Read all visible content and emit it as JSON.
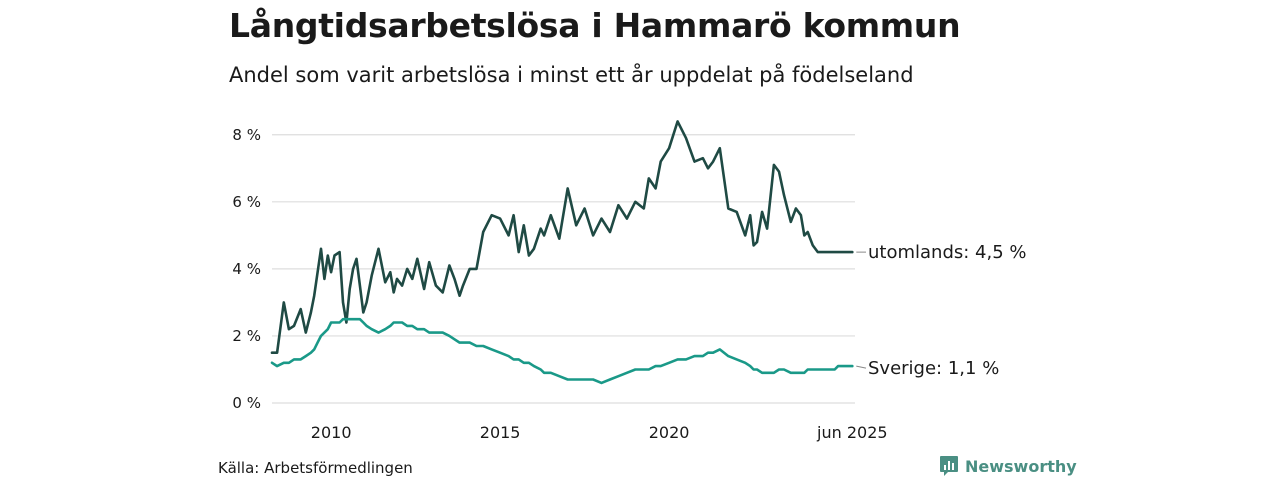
{
  "header": {
    "title": "Långtidsarbetslösa i Hammarö kommun",
    "subtitle": "Andel som varit arbetslösa i minst ett år uppdelat på födelseland"
  },
  "footer": {
    "source": "Källa: Arbetsförmedlingen",
    "brand": "Newsworthy"
  },
  "colors": {
    "utomlands": "#1f4a44",
    "sverige": "#1a9988",
    "grid": "#dddddd",
    "brand": "#4a8f83"
  },
  "chart_data": {
    "type": "line",
    "ylim": [
      0,
      8.5
    ],
    "xlim": [
      2008.25,
      2025.5
    ],
    "y_ticks": [
      {
        "value": 0,
        "label": "0 %"
      },
      {
        "value": 2,
        "label": "2 %"
      },
      {
        "value": 4,
        "label": "4 %"
      },
      {
        "value": 6,
        "label": "6 %"
      },
      {
        "value": 8,
        "label": "8 %"
      }
    ],
    "x_ticks": [
      {
        "value": 2010,
        "label": "2010"
      },
      {
        "value": 2015,
        "label": "2015"
      },
      {
        "value": 2020,
        "label": "2020"
      },
      {
        "value": 2025.42,
        "label": "jun 2025"
      }
    ],
    "series": [
      {
        "name": "utomlands",
        "end_label": "utomlands: 4,5 %",
        "x": [
          2008.25,
          2008.4,
          2008.6,
          2008.75,
          2008.9,
          2009.1,
          2009.25,
          2009.4,
          2009.5,
          2009.6,
          2009.7,
          2009.8,
          2009.9,
          2010.0,
          2010.1,
          2010.25,
          2010.35,
          2010.45,
          2010.55,
          2010.65,
          2010.75,
          2010.85,
          2010.95,
          2011.05,
          2011.2,
          2011.4,
          2011.6,
          2011.75,
          2011.85,
          2011.95,
          2012.1,
          2012.25,
          2012.4,
          2012.55,
          2012.75,
          2012.9,
          2013.1,
          2013.3,
          2013.5,
          2013.65,
          2013.8,
          2013.9,
          2014.1,
          2014.3,
          2014.5,
          2014.75,
          2015.0,
          2015.25,
          2015.4,
          2015.55,
          2015.7,
          2015.85,
          2016.0,
          2016.2,
          2016.3,
          2016.5,
          2016.75,
          2017.0,
          2017.25,
          2017.5,
          2017.75,
          2018.0,
          2018.25,
          2018.5,
          2018.75,
          2019.0,
          2019.25,
          2019.4,
          2019.6,
          2019.75,
          2020.0,
          2020.25,
          2020.5,
          2020.75,
          2021.0,
          2021.15,
          2021.3,
          2021.5,
          2021.75,
          2022.0,
          2022.25,
          2022.4,
          2022.5,
          2022.6,
          2022.75,
          2022.9,
          2023.1,
          2023.25,
          2023.4,
          2023.6,
          2023.75,
          2023.9,
          2024.0,
          2024.1,
          2024.25,
          2024.4,
          2024.5,
          2024.6,
          2024.75,
          2024.9,
          2025.0,
          2025.15,
          2025.25,
          2025.42
        ],
        "values": [
          1.5,
          1.5,
          3.0,
          2.2,
          2.3,
          2.8,
          2.1,
          2.7,
          3.2,
          3.9,
          4.6,
          3.7,
          4.4,
          3.9,
          4.4,
          4.5,
          3.0,
          2.4,
          3.4,
          4.0,
          4.3,
          3.5,
          2.7,
          3.0,
          3.8,
          4.6,
          3.6,
          3.9,
          3.3,
          3.7,
          3.5,
          4.0,
          3.7,
          4.3,
          3.4,
          4.2,
          3.5,
          3.3,
          4.1,
          3.7,
          3.2,
          3.5,
          4.0,
          4.0,
          5.1,
          5.6,
          5.5,
          5.0,
          5.6,
          4.5,
          5.3,
          4.4,
          4.6,
          5.2,
          5.0,
          5.6,
          4.9,
          6.4,
          5.3,
          5.8,
          5.0,
          5.5,
          5.1,
          5.9,
          5.5,
          6.0,
          5.8,
          6.7,
          6.4,
          7.2,
          7.6,
          8.4,
          7.9,
          7.2,
          7.3,
          7.0,
          7.2,
          7.6,
          5.8,
          5.7,
          5.0,
          5.6,
          4.7,
          4.8,
          5.7,
          5.2,
          7.1,
          6.9,
          6.2,
          5.4,
          5.8,
          5.6,
          5.0,
          5.1,
          4.7,
          4.5,
          4.5,
          4.5,
          4.5,
          4.5,
          4.5,
          4.5,
          4.5,
          4.5
        ]
      },
      {
        "name": "Sverige",
        "end_label": "Sverige: 1,1 %",
        "x": [
          2008.25,
          2008.4,
          2008.6,
          2008.75,
          2008.9,
          2009.1,
          2009.25,
          2009.4,
          2009.5,
          2009.6,
          2009.7,
          2009.8,
          2009.9,
          2010.0,
          2010.1,
          2010.25,
          2010.35,
          2010.45,
          2010.55,
          2010.65,
          2010.75,
          2010.85,
          2010.95,
          2011.05,
          2011.2,
          2011.4,
          2011.6,
          2011.75,
          2011.85,
          2011.95,
          2012.1,
          2012.25,
          2012.4,
          2012.55,
          2012.75,
          2012.9,
          2013.1,
          2013.3,
          2013.5,
          2013.65,
          2013.8,
          2013.9,
          2014.1,
          2014.3,
          2014.5,
          2014.75,
          2015.0,
          2015.25,
          2015.4,
          2015.55,
          2015.7,
          2015.85,
          2016.0,
          2016.2,
          2016.3,
          2016.5,
          2016.75,
          2017.0,
          2017.25,
          2017.5,
          2017.75,
          2018.0,
          2018.25,
          2018.5,
          2018.75,
          2019.0,
          2019.25,
          2019.4,
          2019.6,
          2019.75,
          2020.0,
          2020.25,
          2020.5,
          2020.75,
          2021.0,
          2021.15,
          2021.3,
          2021.5,
          2021.75,
          2022.0,
          2022.25,
          2022.4,
          2022.5,
          2022.6,
          2022.75,
          2022.9,
          2023.1,
          2023.25,
          2023.4,
          2023.6,
          2023.75,
          2023.9,
          2024.0,
          2024.1,
          2024.25,
          2024.4,
          2024.5,
          2024.6,
          2024.75,
          2024.9,
          2025.0,
          2025.15,
          2025.25,
          2025.42
        ],
        "values": [
          1.2,
          1.1,
          1.2,
          1.2,
          1.3,
          1.3,
          1.4,
          1.5,
          1.6,
          1.8,
          2.0,
          2.1,
          2.2,
          2.4,
          2.4,
          2.4,
          2.5,
          2.5,
          2.5,
          2.5,
          2.5,
          2.5,
          2.4,
          2.3,
          2.2,
          2.1,
          2.2,
          2.3,
          2.4,
          2.4,
          2.4,
          2.3,
          2.3,
          2.2,
          2.2,
          2.1,
          2.1,
          2.1,
          2.0,
          1.9,
          1.8,
          1.8,
          1.8,
          1.7,
          1.7,
          1.6,
          1.5,
          1.4,
          1.3,
          1.3,
          1.2,
          1.2,
          1.1,
          1.0,
          0.9,
          0.9,
          0.8,
          0.7,
          0.7,
          0.7,
          0.7,
          0.6,
          0.7,
          0.8,
          0.9,
          1.0,
          1.0,
          1.0,
          1.1,
          1.1,
          1.2,
          1.3,
          1.3,
          1.4,
          1.4,
          1.5,
          1.5,
          1.6,
          1.4,
          1.3,
          1.2,
          1.1,
          1.0,
          1.0,
          0.9,
          0.9,
          0.9,
          1.0,
          1.0,
          0.9,
          0.9,
          0.9,
          0.9,
          1.0,
          1.0,
          1.0,
          1.0,
          1.0,
          1.0,
          1.0,
          1.1,
          1.1,
          1.1,
          1.1
        ]
      }
    ]
  }
}
